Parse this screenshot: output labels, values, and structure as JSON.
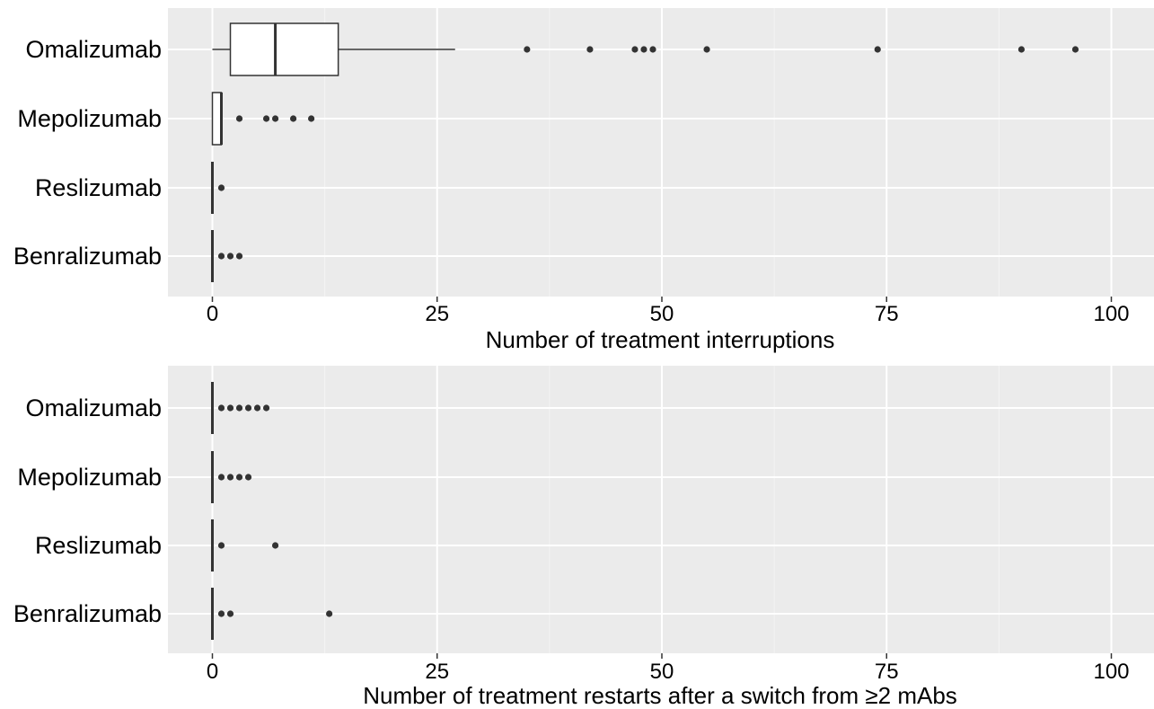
{
  "chart_data": [
    {
      "type": "boxplot",
      "orientation": "horizontal",
      "xlabel": "Number of treatment interruptions",
      "xlim": [
        -10,
        105
      ],
      "xticks": [
        "0",
        "25",
        "50",
        "75",
        "100"
      ],
      "grid": true,
      "categories": [
        "Omalizumab",
        "Mepolizumab",
        "Reslizumab",
        "Benralizumab"
      ],
      "boxes": [
        {
          "category": "Omalizumab",
          "min": 0,
          "q1": 2,
          "median": 7,
          "q3": 14,
          "max": 27,
          "outliers": [
            35,
            42,
            47,
            48,
            49,
            55,
            74,
            90,
            96
          ]
        },
        {
          "category": "Mepolizumab",
          "min": 0,
          "q1": 0,
          "median": 1,
          "q3": 1,
          "max": 1,
          "outliers": [
            3,
            6,
            7,
            9,
            11
          ]
        },
        {
          "category": "Reslizumab",
          "min": 0,
          "q1": 0,
          "median": 0,
          "q3": 0,
          "max": 0,
          "outliers": [
            1
          ]
        },
        {
          "category": "Benralizumab",
          "min": 0,
          "q1": 0,
          "median": 0,
          "q3": 0,
          "max": 0,
          "outliers": [
            1,
            2,
            3
          ]
        }
      ]
    },
    {
      "type": "boxplot",
      "orientation": "horizontal",
      "xlabel": "Number of treatment restarts after a switch from ≥2 mAbs",
      "xlim": [
        -10,
        105
      ],
      "xticks": [
        "0",
        "25",
        "50",
        "75",
        "100"
      ],
      "grid": true,
      "categories": [
        "Omalizumab",
        "Mepolizumab",
        "Reslizumab",
        "Benralizumab"
      ],
      "boxes": [
        {
          "category": "Omalizumab",
          "min": 0,
          "q1": 0,
          "median": 0,
          "q3": 0,
          "max": 0,
          "outliers": [
            1,
            2,
            3,
            4,
            5,
            6
          ]
        },
        {
          "category": "Mepolizumab",
          "min": 0,
          "q1": 0,
          "median": 0,
          "q3": 0,
          "max": 0,
          "outliers": [
            1,
            2,
            3,
            4
          ]
        },
        {
          "category": "Reslizumab",
          "min": 0,
          "q1": 0,
          "median": 0,
          "q3": 0,
          "max": 0,
          "outliers": [
            1,
            7
          ]
        },
        {
          "category": "Benralizumab",
          "min": 0,
          "q1": 0,
          "median": 0,
          "q3": 0,
          "max": 0,
          "outliers": [
            1,
            2,
            13
          ]
        }
      ]
    }
  ]
}
